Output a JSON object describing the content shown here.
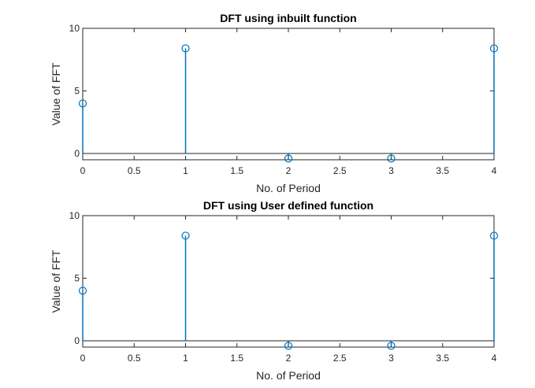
{
  "colors": {
    "stem": "#0072BD",
    "axis": "#262626",
    "background": "#ffffff"
  },
  "chart_data": [
    {
      "type": "stem",
      "title": "DFT using inbuilt function",
      "xlabel": "No. of Period",
      "ylabel": "Value of FFT",
      "x": [
        0,
        1,
        2,
        3,
        4
      ],
      "y": [
        4,
        8.4,
        -0.4,
        -0.4,
        8.4
      ],
      "xlim": [
        0,
        4
      ],
      "ylim": [
        -0.5,
        10
      ],
      "xticks": [
        0,
        0.5,
        1,
        1.5,
        2,
        2.5,
        3,
        3.5,
        4
      ],
      "xtick_labels": [
        "0",
        "0.5",
        "1",
        "1.5",
        "2",
        "2.5",
        "3",
        "3.5",
        "4"
      ],
      "yticks": [
        0,
        5,
        10
      ],
      "ytick_labels": [
        "0",
        "5",
        "10"
      ],
      "grid": false,
      "baseline": 0
    },
    {
      "type": "stem",
      "title": "DFT using User defined function",
      "xlabel": "No. of Period",
      "ylabel": "Value of FFT",
      "x": [
        0,
        1,
        2,
        3,
        4
      ],
      "y": [
        4,
        8.4,
        -0.4,
        -0.4,
        8.4
      ],
      "xlim": [
        0,
        4
      ],
      "ylim": [
        -0.5,
        10
      ],
      "xticks": [
        0,
        0.5,
        1,
        1.5,
        2,
        2.5,
        3,
        3.5,
        4
      ],
      "xtick_labels": [
        "0",
        "0.5",
        "1",
        "1.5",
        "2",
        "2.5",
        "3",
        "3.5",
        "4"
      ],
      "yticks": [
        0,
        5,
        10
      ],
      "ytick_labels": [
        "0",
        "5",
        "10"
      ],
      "grid": false,
      "baseline": 0
    }
  ]
}
